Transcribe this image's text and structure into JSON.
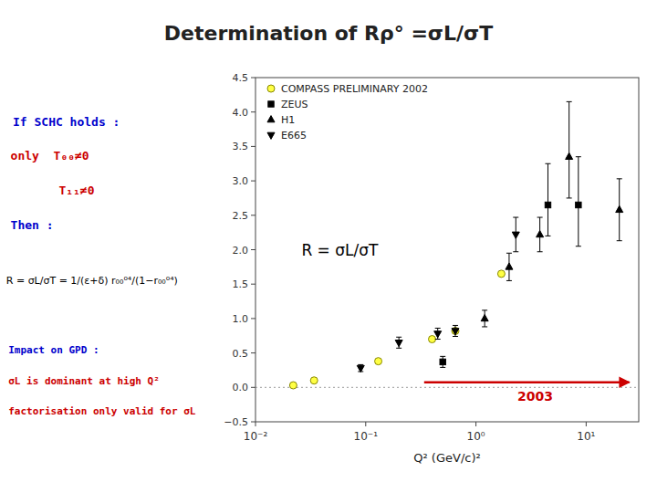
{
  "chart_data": {
    "type": "scatter",
    "title": "Determination of Rρ° =σL/σT",
    "x_label": "Q² (GeV/c)²",
    "log": "x",
    "xlim": [
      0.01,
      30
    ],
    "xticks": [
      {
        "value": 0.01,
        "label": "10⁻²"
      },
      {
        "value": 0.1,
        "label": "10⁻¹"
      },
      {
        "value": 1,
        "label": "10⁰"
      },
      {
        "value": 10,
        "label": "10¹"
      }
    ],
    "ylim": [
      -0.5,
      4.5
    ],
    "yticks": [
      {
        "value": -0.5,
        "label": "−0.5"
      },
      {
        "value": 0,
        "label": "0.0"
      },
      0.5,
      {
        "value": 1.0,
        "label": "1.0"
      },
      1.5,
      {
        "value": 2.0,
        "label": "2.0"
      },
      2.5,
      {
        "value": 3.0,
        "label": "3.0"
      },
      3.5,
      {
        "value": 4.0,
        "label": "4.0"
      },
      4.5
    ],
    "grid": false,
    "legend": "upper left",
    "hlines": [
      0
    ],
    "series": [
      {
        "name": "COMPASS PRELIMINARY 2002",
        "type": "scatter",
        "marker": "circle",
        "color": "#FFFF44",
        "x": [
          0.022,
          0.034,
          0.13,
          0.4,
          0.65,
          1.7
        ],
        "values": [
          0.03,
          0.1,
          0.38,
          0.7,
          0.82,
          1.65
        ]
      },
      {
        "name": "ZEUS",
        "type": "scatter",
        "marker": "square",
        "color": "#000000",
        "x": [
          0.5,
          4.5,
          8.5
        ],
        "values": [
          0.37,
          2.65,
          2.65
        ],
        "error_low": [
          0.08,
          0.45,
          0.6
        ],
        "error_high": [
          0.08,
          0.6,
          0.7
        ]
      },
      {
        "name": "H1",
        "type": "scatter",
        "marker": "triangle-up",
        "color": "#000000",
        "x": [
          1.2,
          2.0,
          3.8,
          7.0,
          20.0
        ],
        "values": [
          1.0,
          1.75,
          2.22,
          3.35,
          2.58
        ],
        "error_low": [
          0.12,
          0.2,
          0.25,
          0.6,
          0.45
        ],
        "error_high": [
          0.12,
          0.2,
          0.25,
          0.8,
          0.45
        ]
      },
      {
        "name": "E665",
        "type": "scatter",
        "marker": "triangle-down",
        "color": "#000000",
        "x": [
          0.09,
          0.2,
          0.45,
          0.65,
          2.3
        ],
        "values": [
          0.28,
          0.65,
          0.78,
          0.82,
          2.22
        ],
        "error_low": [
          0.05,
          0.08,
          0.08,
          0.08,
          0.25
        ],
        "error_high": [
          0.05,
          0.08,
          0.08,
          0.08,
          0.25
        ]
      }
    ],
    "annotations": [
      {
        "text": "R = σL/σT",
        "color": "#000000"
      },
      {
        "text": "2003",
        "color": "#CC0000"
      },
      {
        "text": "If SCHC holds :",
        "color": "#0000CC"
      },
      {
        "text": "only  T₀₀≠0",
        "color": "#CC0000"
      },
      {
        "text": "T₁₁≠0",
        "color": "#CC0000"
      },
      {
        "text": "Then :",
        "color": "#0000CC"
      },
      {
        "text": "R = σL/σT = 1/(ε+δ) r₀₀⁰⁴/(1−r₀₀⁰⁴)",
        "color": "#000000"
      },
      {
        "text": "Impact on GPD :",
        "color": "#0000CC"
      },
      {
        "text": "σL is dominant at high Q²",
        "color": "#CC0000"
      },
      {
        "text": "factorisation only valid for σL",
        "color": "#CC0000"
      }
    ]
  }
}
